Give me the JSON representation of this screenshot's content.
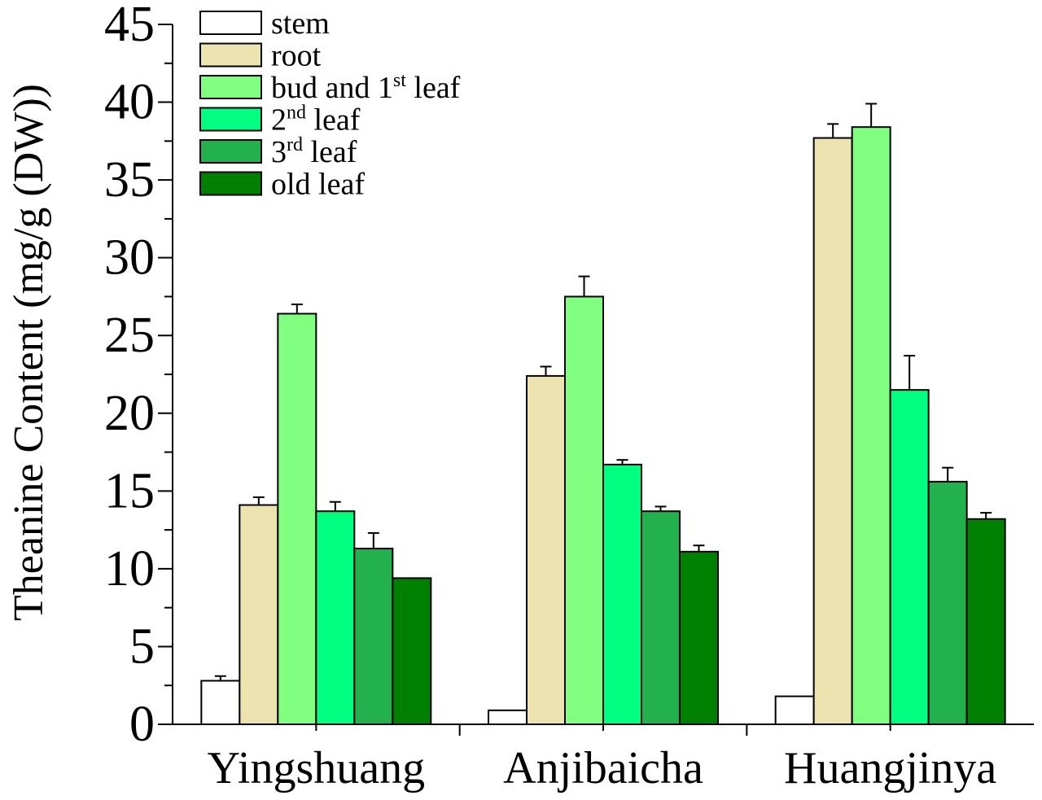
{
  "chart_data": {
    "type": "bar",
    "title": "",
    "xlabel": "",
    "ylabel": "Theanine Content (mg/g (DW))",
    "ylim": [
      0,
      45
    ],
    "yticks": [
      0,
      5,
      10,
      15,
      20,
      25,
      30,
      35,
      40,
      45
    ],
    "grid": false,
    "legend_position": "top-left",
    "categories": [
      "Yingshuang",
      "Anjibaicha",
      "Huangjinya"
    ],
    "series": [
      {
        "name": "stem",
        "base": "stem",
        "sup": "",
        "suffix": "",
        "color": "#ffffff",
        "values": [
          2.8,
          0.9,
          1.8
        ],
        "errors": [
          0.3,
          0.0,
          0.0
        ]
      },
      {
        "name": "root",
        "base": "root",
        "sup": "",
        "suffix": "",
        "color": "#ede3b0",
        "values": [
          14.1,
          22.4,
          37.7
        ],
        "errors": [
          0.5,
          0.6,
          0.9
        ]
      },
      {
        "name": "bud and 1st leaf",
        "base": "bud and 1",
        "sup": "st",
        "suffix": " leaf",
        "color": "#80ff80",
        "values": [
          26.4,
          27.5,
          38.4
        ],
        "errors": [
          0.6,
          1.3,
          1.5
        ]
      },
      {
        "name": "2nd leaf",
        "base": "2",
        "sup": "nd",
        "suffix": " leaf",
        "color": "#00ff80",
        "values": [
          13.7,
          16.7,
          21.5
        ],
        "errors": [
          0.6,
          0.3,
          2.2
        ]
      },
      {
        "name": "3rd leaf",
        "base": "3",
        "sup": "rd",
        "suffix": " leaf",
        "color": "#22b14c",
        "values": [
          11.3,
          13.7,
          15.6
        ],
        "errors": [
          1.0,
          0.3,
          0.9
        ]
      },
      {
        "name": "old leaf",
        "base": "old leaf",
        "sup": "",
        "suffix": "",
        "color": "#008000",
        "values": [
          9.4,
          11.1,
          13.2
        ],
        "errors": [
          0.0,
          0.4,
          0.4
        ]
      }
    ]
  }
}
